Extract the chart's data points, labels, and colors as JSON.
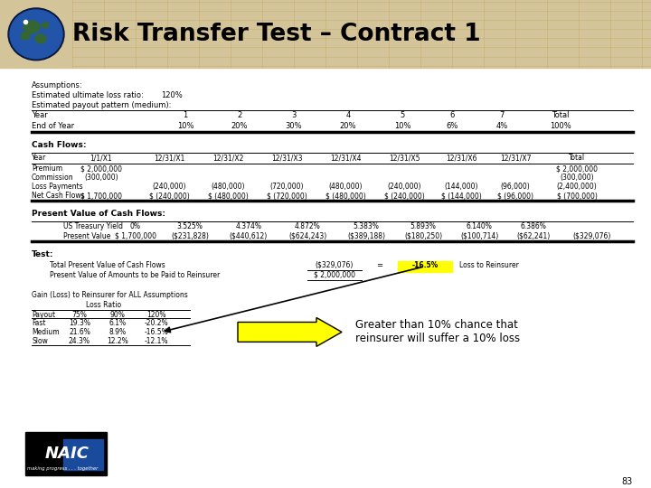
{
  "title": "Risk Transfer Test – Contract 1",
  "header_bg": "#D4C49A",
  "bg_color": "#FFFFFF",
  "assumptions_label1": "Estimated ultimate loss ratio:",
  "assumptions_value1": "120%",
  "assumptions_label2": "Estimated payout pattern (medium):",
  "payout_cols": [
    "1",
    "2",
    "3",
    "4",
    "5",
    "6",
    "7",
    "Total"
  ],
  "payout_vals": [
    "10%",
    "20%",
    "30%",
    "20%",
    "10%",
    "6%",
    "4%",
    "100%"
  ],
  "cash_flows_label": "Cash Flows:",
  "cf_header": [
    "Year",
    "1/1/X1",
    "12/31/X1",
    "12/31/X2",
    "12/31/X3",
    "12/31/X4",
    "12/31/X5",
    "12/31/X6",
    "12/31/X7",
    "Total"
  ],
  "cf_premium": [
    "Premium",
    "$ 2,000,000",
    "",
    "",
    "",
    "",
    "",
    "",
    "",
    "$ 2,000,000"
  ],
  "cf_commission": [
    "Commission",
    "(300,000)",
    "",
    "",
    "",
    "",
    "",
    "",
    "",
    "(300,000)"
  ],
  "cf_loss": [
    "Loss Payments",
    "",
    "(240,000)",
    "(480,000)",
    "(720,000)",
    "(480,000)",
    "(240,000)",
    "(144,000)",
    "(96,000)",
    "(2,400,000)"
  ],
  "cf_net": [
    "Net Cash Flows",
    "$ 1,700,000",
    "$ (240,000)",
    "$ (480,000)",
    "$ (720,000)",
    "$ (480,000)",
    "$ (240,000)",
    "$ (144,000)",
    "$ (96,000)",
    "$ (700,000)"
  ],
  "pv_label": "Present Value of Cash Flows:",
  "pv_yield_label": "US Treasury Yield",
  "pv_yield_vals": [
    "0%",
    "3.525%",
    "4.374%",
    "4.872%",
    "5.383%",
    "5.893%",
    "6.140%",
    "6.386%"
  ],
  "pv_value_label": "Present Value",
  "pv_values": [
    "$ 1,700,000",
    "($231,828)",
    "($440,612)",
    "($624,243)",
    "($389,188)",
    "($180,250)",
    "($100,714)",
    "($62,241)",
    "($329,076)"
  ],
  "test_label": "Test:",
  "test_row1_label": "Total Present Value of Cash Flows",
  "test_row1_val": "($329,076)",
  "test_row2_label": "Present Value of Amounts to be Paid to Reinsurer",
  "test_row2_val": "$ 2,000,000",
  "test_result": "-16.5%",
  "test_result_suffix": "Loss to Reinsurer",
  "gain_loss_label": "Gain (Loss) to Reinsurer for ALL Assumptions",
  "gain_loss_sublabel": "Loss Ratio",
  "gl_header": [
    "Payout",
    "75%",
    "90%",
    "120%"
  ],
  "gl_fast": [
    "Fast",
    "19.3%",
    "6.1%",
    "-20.2%"
  ],
  "gl_medium": [
    "Medium",
    "21.6%",
    "8.9%",
    "-16.5%"
  ],
  "gl_slow": [
    "Slow",
    "24.3%",
    "12.2%",
    "-12.1%"
  ],
  "arrow_text": "Greater than 10% chance that\nreinsurer will suffer a 10% loss",
  "page_num": "83"
}
